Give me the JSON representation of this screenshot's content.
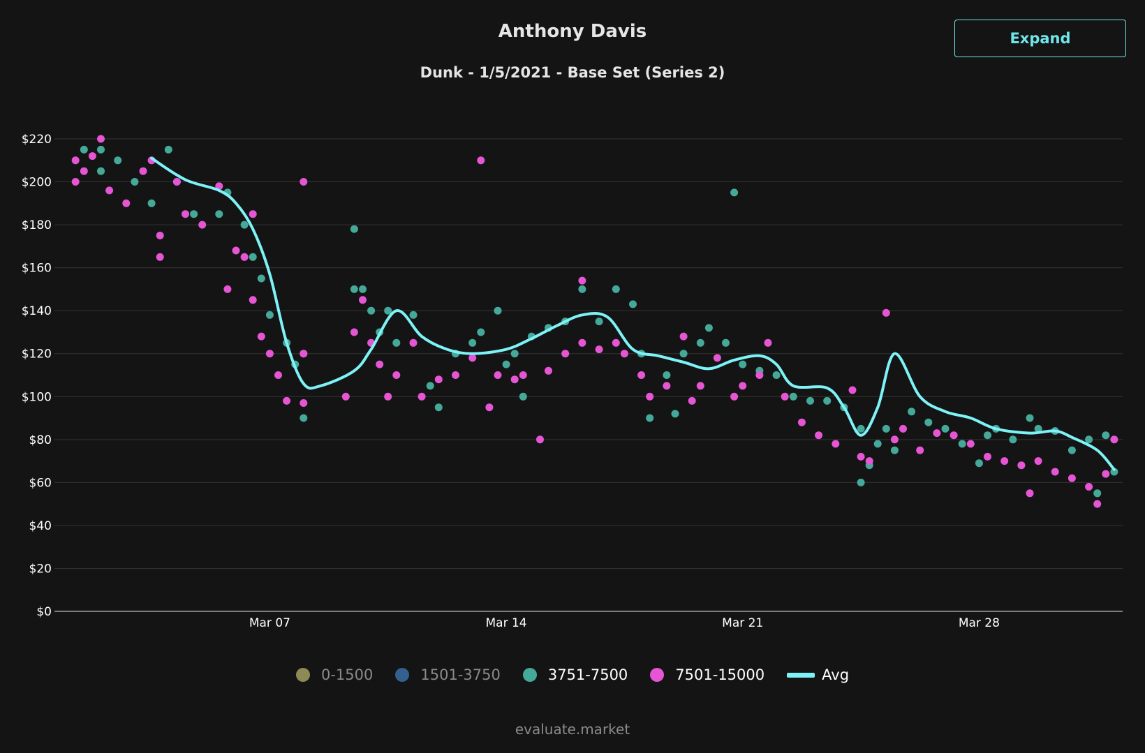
{
  "header": {
    "title": "Anthony Davis",
    "subtitle": "Dunk - 1/5/2021 - Base Set (Series 2)",
    "expand_label": "Expand"
  },
  "footer": {
    "text": "evaluate.market"
  },
  "colors": {
    "background": "#141414",
    "avg_line": "#7ef3f7",
    "grid": "#333333",
    "text": "#ffffff"
  },
  "chart_data": {
    "type": "scatter",
    "title": "Anthony Davis",
    "subtitle": "Dunk - 1/5/2021 - Base Set (Series 2)",
    "xlabel": "",
    "ylabel": "",
    "x_ticks": [
      "Mar 07",
      "Mar 14",
      "Mar 21",
      "Mar 28"
    ],
    "x_tick_dates": [
      "2021-03-07",
      "2021-03-14",
      "2021-03-21",
      "2021-03-28"
    ],
    "xlim": [
      "2021-02-28T15:00",
      "2021-04-01T06:00"
    ],
    "y_ticks": [
      "$0",
      "$20",
      "$40",
      "$60",
      "$80",
      "$100",
      "$120",
      "$140",
      "$160",
      "$180",
      "$200",
      "$220"
    ],
    "ylim": [
      0,
      220
    ],
    "grid": true,
    "legend_position": "bottom",
    "series": [
      {
        "name": "0-1500",
        "color": "#8d8a55",
        "hidden": true,
        "points": []
      },
      {
        "name": "1501-3750",
        "color": "#33608f",
        "hidden": true,
        "points": []
      },
      {
        "name": "3751-7500",
        "color": "#45a99a",
        "hidden": false,
        "points": [
          [
            "2021-03-01T12:00",
            215
          ],
          [
            "2021-03-02T00:00",
            215
          ],
          [
            "2021-03-02T12:00",
            210
          ],
          [
            "2021-03-02T00:00",
            205
          ],
          [
            "2021-03-03T00:00",
            200
          ],
          [
            "2021-03-03T12:00",
            190
          ],
          [
            "2021-03-04T00:00",
            215
          ],
          [
            "2021-03-04T06:00",
            200
          ],
          [
            "2021-03-04T18:00",
            185
          ],
          [
            "2021-03-05T12:00",
            185
          ],
          [
            "2021-03-05T18:00",
            195
          ],
          [
            "2021-03-06T06:00",
            180
          ],
          [
            "2021-03-06T12:00",
            165
          ],
          [
            "2021-03-06T18:00",
            155
          ],
          [
            "2021-03-07T00:00",
            138
          ],
          [
            "2021-03-07T12:00",
            125
          ],
          [
            "2021-03-07T18:00",
            115
          ],
          [
            "2021-03-08T00:00",
            120
          ],
          [
            "2021-03-08T00:00",
            90
          ],
          [
            "2021-03-09T12:00",
            178
          ],
          [
            "2021-03-09T12:00",
            150
          ],
          [
            "2021-03-09T18:00",
            150
          ],
          [
            "2021-03-10T00:00",
            140
          ],
          [
            "2021-03-10T06:00",
            130
          ],
          [
            "2021-03-10T12:00",
            140
          ],
          [
            "2021-03-10T18:00",
            125
          ],
          [
            "2021-03-11T06:00",
            138
          ],
          [
            "2021-03-11T18:00",
            105
          ],
          [
            "2021-03-12T00:00",
            95
          ],
          [
            "2021-03-12T12:00",
            120
          ],
          [
            "2021-03-13T00:00",
            125
          ],
          [
            "2021-03-13T06:00",
            130
          ],
          [
            "2021-03-13T18:00",
            140
          ],
          [
            "2021-03-14T00:00",
            115
          ],
          [
            "2021-03-14T06:00",
            120
          ],
          [
            "2021-03-14T12:00",
            100
          ],
          [
            "2021-03-14T18:00",
            128
          ],
          [
            "2021-03-15T06:00",
            132
          ],
          [
            "2021-03-15T18:00",
            135
          ],
          [
            "2021-03-16T06:00",
            150
          ],
          [
            "2021-03-16T18:00",
            135
          ],
          [
            "2021-03-17T06:00",
            150
          ],
          [
            "2021-03-17T18:00",
            143
          ],
          [
            "2021-03-18T00:00",
            120
          ],
          [
            "2021-03-18T06:00",
            90
          ],
          [
            "2021-03-18T18:00",
            110
          ],
          [
            "2021-03-19T00:00",
            92
          ],
          [
            "2021-03-19T06:00",
            120
          ],
          [
            "2021-03-19T18:00",
            125
          ],
          [
            "2021-03-20T00:00",
            132
          ],
          [
            "2021-03-20T12:00",
            125
          ],
          [
            "2021-03-20T18:00",
            195
          ],
          [
            "2021-03-21T00:00",
            115
          ],
          [
            "2021-03-21T12:00",
            112
          ],
          [
            "2021-03-22T00:00",
            110
          ],
          [
            "2021-03-22T12:00",
            100
          ],
          [
            "2021-03-23T00:00",
            98
          ],
          [
            "2021-03-23T12:00",
            98
          ],
          [
            "2021-03-24T00:00",
            95
          ],
          [
            "2021-03-24T12:00",
            85
          ],
          [
            "2021-03-24T12:00",
            60
          ],
          [
            "2021-03-24T18:00",
            68
          ],
          [
            "2021-03-25T00:00",
            78
          ],
          [
            "2021-03-25T06:00",
            85
          ],
          [
            "2021-03-25T12:00",
            75
          ],
          [
            "2021-03-26T00:00",
            93
          ],
          [
            "2021-03-26T12:00",
            88
          ],
          [
            "2021-03-27T00:00",
            85
          ],
          [
            "2021-03-27T12:00",
            78
          ],
          [
            "2021-03-28T00:00",
            69
          ],
          [
            "2021-03-28T06:00",
            82
          ],
          [
            "2021-03-28T12:00",
            85
          ],
          [
            "2021-03-29T00:00",
            80
          ],
          [
            "2021-03-29T12:00",
            90
          ],
          [
            "2021-03-29T18:00",
            85
          ],
          [
            "2021-03-30T06:00",
            84
          ],
          [
            "2021-03-30T18:00",
            75
          ],
          [
            "2021-03-31T06:00",
            80
          ],
          [
            "2021-03-31T12:00",
            55
          ],
          [
            "2021-03-31T18:00",
            82
          ],
          [
            "2021-04-01T00:00",
            65
          ]
        ]
      },
      {
        "name": "7501-15000",
        "color": "#e555d4",
        "hidden": false,
        "points": [
          [
            "2021-03-01T06:00",
            200
          ],
          [
            "2021-03-01T06:00",
            210
          ],
          [
            "2021-03-01T12:00",
            205
          ],
          [
            "2021-03-01T18:00",
            212
          ],
          [
            "2021-03-02T00:00",
            220
          ],
          [
            "2021-03-02T06:00",
            196
          ],
          [
            "2021-03-02T18:00",
            190
          ],
          [
            "2021-03-03T06:00",
            205
          ],
          [
            "2021-03-03T12:00",
            210
          ],
          [
            "2021-03-03T18:00",
            175
          ],
          [
            "2021-03-03T18:00",
            165
          ],
          [
            "2021-03-04T06:00",
            200
          ],
          [
            "2021-03-04T12:00",
            185
          ],
          [
            "2021-03-05T00:00",
            180
          ],
          [
            "2021-03-05T12:00",
            198
          ],
          [
            "2021-03-05T18:00",
            150
          ],
          [
            "2021-03-06T00:00",
            168
          ],
          [
            "2021-03-06T06:00",
            165
          ],
          [
            "2021-03-06T12:00",
            185
          ],
          [
            "2021-03-06T12:00",
            145
          ],
          [
            "2021-03-06T18:00",
            128
          ],
          [
            "2021-03-07T00:00",
            120
          ],
          [
            "2021-03-07T06:00",
            110
          ],
          [
            "2021-03-07T12:00",
            98
          ],
          [
            "2021-03-08T00:00",
            200
          ],
          [
            "2021-03-08T00:00",
            120
          ],
          [
            "2021-03-08T00:00",
            97
          ],
          [
            "2021-03-09T06:00",
            100
          ],
          [
            "2021-03-09T12:00",
            130
          ],
          [
            "2021-03-09T18:00",
            145
          ],
          [
            "2021-03-10T00:00",
            125
          ],
          [
            "2021-03-10T06:00",
            115
          ],
          [
            "2021-03-10T12:00",
            100
          ],
          [
            "2021-03-10T18:00",
            110
          ],
          [
            "2021-03-11T06:00",
            125
          ],
          [
            "2021-03-11T12:00",
            100
          ],
          [
            "2021-03-12T00:00",
            108
          ],
          [
            "2021-03-12T12:00",
            110
          ],
          [
            "2021-03-13T00:00",
            118
          ],
          [
            "2021-03-13T06:00",
            210
          ],
          [
            "2021-03-13T12:00",
            95
          ],
          [
            "2021-03-13T18:00",
            110
          ],
          [
            "2021-03-14T06:00",
            108
          ],
          [
            "2021-03-14T12:00",
            110
          ],
          [
            "2021-03-15T00:00",
            80
          ],
          [
            "2021-03-15T06:00",
            112
          ],
          [
            "2021-03-15T18:00",
            120
          ],
          [
            "2021-03-16T06:00",
            125
          ],
          [
            "2021-03-16T06:00",
            154
          ],
          [
            "2021-03-16T18:00",
            122
          ],
          [
            "2021-03-17T06:00",
            125
          ],
          [
            "2021-03-17T12:00",
            120
          ],
          [
            "2021-03-18T00:00",
            110
          ],
          [
            "2021-03-18T06:00",
            100
          ],
          [
            "2021-03-18T18:00",
            105
          ],
          [
            "2021-03-19T06:00",
            128
          ],
          [
            "2021-03-19T12:00",
            98
          ],
          [
            "2021-03-19T18:00",
            105
          ],
          [
            "2021-03-20T06:00",
            118
          ],
          [
            "2021-03-20T18:00",
            100
          ],
          [
            "2021-03-21T00:00",
            105
          ],
          [
            "2021-03-21T12:00",
            110
          ],
          [
            "2021-03-21T18:00",
            125
          ],
          [
            "2021-03-22T06:00",
            100
          ],
          [
            "2021-03-22T18:00",
            88
          ],
          [
            "2021-03-23T06:00",
            82
          ],
          [
            "2021-03-23T18:00",
            78
          ],
          [
            "2021-03-24T06:00",
            103
          ],
          [
            "2021-03-24T12:00",
            72
          ],
          [
            "2021-03-24T18:00",
            70
          ],
          [
            "2021-03-25T06:00",
            139
          ],
          [
            "2021-03-25T12:00",
            80
          ],
          [
            "2021-03-25T18:00",
            85
          ],
          [
            "2021-03-26T06:00",
            75
          ],
          [
            "2021-03-26T18:00",
            83
          ],
          [
            "2021-03-27T06:00",
            82
          ],
          [
            "2021-03-27T18:00",
            78
          ],
          [
            "2021-03-28T06:00",
            72
          ],
          [
            "2021-03-28T18:00",
            70
          ],
          [
            "2021-03-29T06:00",
            68
          ],
          [
            "2021-03-29T12:00",
            55
          ],
          [
            "2021-03-29T18:00",
            70
          ],
          [
            "2021-03-30T06:00",
            65
          ],
          [
            "2021-03-30T18:00",
            62
          ],
          [
            "2021-03-31T06:00",
            58
          ],
          [
            "2021-03-31T12:00",
            50
          ],
          [
            "2021-03-31T18:00",
            64
          ],
          [
            "2021-04-01T00:00",
            80
          ]
        ]
      },
      {
        "name": "Avg",
        "color": "#7ef3f7",
        "type": "line",
        "points": [
          [
            "2021-03-03T12:00",
            211
          ],
          [
            "2021-03-04T12:00",
            201
          ],
          [
            "2021-03-05T12:00",
            196
          ],
          [
            "2021-03-06T00:00",
            190
          ],
          [
            "2021-03-06T12:00",
            178
          ],
          [
            "2021-03-07T00:00",
            157
          ],
          [
            "2021-03-07T12:00",
            125
          ],
          [
            "2021-03-08T00:00",
            106
          ],
          [
            "2021-03-08T12:00",
            105
          ],
          [
            "2021-03-09T12:00",
            112
          ],
          [
            "2021-03-10T00:00",
            122
          ],
          [
            "2021-03-10T18:00",
            140
          ],
          [
            "2021-03-11T12:00",
            128
          ],
          [
            "2021-03-12T06:00",
            122
          ],
          [
            "2021-03-13T00:00",
            120
          ],
          [
            "2021-03-14T00:00",
            122
          ],
          [
            "2021-03-14T18:00",
            127
          ],
          [
            "2021-03-15T12:00",
            133
          ],
          [
            "2021-03-16T06:00",
            138
          ],
          [
            "2021-03-17T00:00",
            137
          ],
          [
            "2021-03-17T18:00",
            122
          ],
          [
            "2021-03-18T12:00",
            119
          ],
          [
            "2021-03-19T06:00",
            116
          ],
          [
            "2021-03-20T00:00",
            113
          ],
          [
            "2021-03-20T18:00",
            117
          ],
          [
            "2021-03-21T12:00",
            119
          ],
          [
            "2021-03-22T00:00",
            115
          ],
          [
            "2021-03-22T12:00",
            105
          ],
          [
            "2021-03-23T12:00",
            104
          ],
          [
            "2021-03-24T00:00",
            95
          ],
          [
            "2021-03-24T12:00",
            82
          ],
          [
            "2021-03-25T00:00",
            95
          ],
          [
            "2021-03-25T12:00",
            120
          ],
          [
            "2021-03-26T06:00",
            100
          ],
          [
            "2021-03-27T00:00",
            93
          ],
          [
            "2021-03-27T18:00",
            90
          ],
          [
            "2021-03-28T12:00",
            85
          ],
          [
            "2021-03-29T12:00",
            83
          ],
          [
            "2021-03-30T06:00",
            84
          ],
          [
            "2021-03-30T18:00",
            81
          ],
          [
            "2021-03-31T12:00",
            75
          ],
          [
            "2021-04-01T00:00",
            66
          ]
        ]
      }
    ]
  }
}
